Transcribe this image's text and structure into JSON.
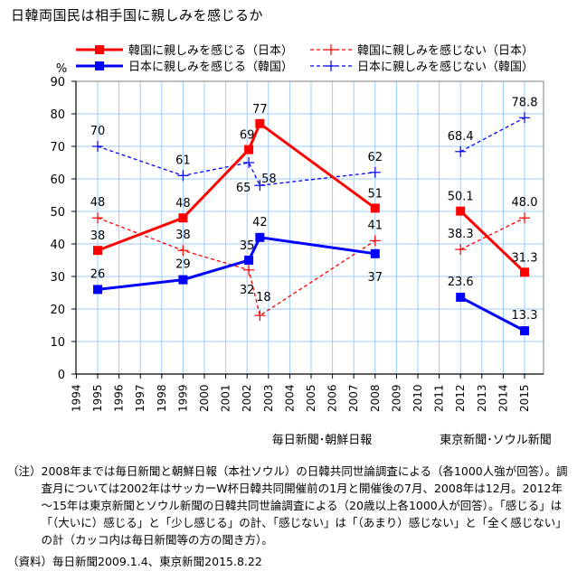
{
  "title": "日韓両国民は相手国に親しみを感じるか",
  "chart_data": {
    "type": "line",
    "title": "日韓両国民は相手国に親しみを感じるか",
    "ylabel": "%",
    "xlabel": "",
    "ylim": [
      0,
      90
    ],
    "yticks": [
      0,
      10,
      20,
      30,
      40,
      50,
      60,
      70,
      80,
      90
    ],
    "xlim": [
      1994,
      2015.9
    ],
    "xticks": [
      "1994",
      "1995",
      "1996",
      "1997",
      "1998",
      "1999",
      "2000",
      "2001",
      "2002",
      "2003",
      "2004",
      "2005",
      "2006",
      "2007",
      "2008",
      "2009",
      "2010",
      "2011",
      "2012",
      "2013",
      "2014",
      "2015"
    ],
    "grid": true,
    "legend_position": "top",
    "source_groups": [
      {
        "label": "毎日新聞･朝鮮日報",
        "years": "1995-2008"
      },
      {
        "label": "東京新聞･ソウル新聞",
        "years": "2012-2015"
      }
    ],
    "series": [
      {
        "name": "韓国に親しみを感じる（日本）",
        "color": "#ff0000",
        "style": "solid",
        "marker": "square",
        "segments": [
          [
            {
              "x": 1995,
              "y": 38,
              "label": "38"
            },
            {
              "x": 1999,
              "y": 48,
              "label": "48"
            },
            {
              "x": 2002.08,
              "y": 69,
              "label": "69"
            },
            {
              "x": 2002.6,
              "y": 77,
              "label": "77"
            },
            {
              "x": 2008,
              "y": 51,
              "label": "51"
            }
          ],
          [
            {
              "x": 2012,
              "y": 50.1,
              "label": "50.1"
            },
            {
              "x": 2015,
              "y": 31.3,
              "label": "31.3"
            }
          ]
        ]
      },
      {
        "name": "韓国に親しみを感じない（日本）",
        "color": "#ff0000",
        "style": "dashed",
        "marker": "plus",
        "segments": [
          [
            {
              "x": 1995,
              "y": 48,
              "label": "48"
            },
            {
              "x": 1999,
              "y": 38,
              "label": "38"
            },
            {
              "x": 2002.08,
              "y": 32,
              "label": "32"
            },
            {
              "x": 2002.6,
              "y": 18,
              "label": "18"
            },
            {
              "x": 2008,
              "y": 41,
              "label": "41"
            }
          ],
          [
            {
              "x": 2012,
              "y": 38.3,
              "label": "38.3"
            },
            {
              "x": 2015,
              "y": 48.0,
              "label": "48.0"
            }
          ]
        ]
      },
      {
        "name": "日本に親しみを感じる（韓国）",
        "color": "#0000ff",
        "style": "solid",
        "marker": "square",
        "segments": [
          [
            {
              "x": 1995,
              "y": 26,
              "label": "26"
            },
            {
              "x": 1999,
              "y": 29,
              "label": "29"
            },
            {
              "x": 2002.08,
              "y": 35,
              "label": "35"
            },
            {
              "x": 2002.6,
              "y": 42,
              "label": "42"
            },
            {
              "x": 2008,
              "y": 37,
              "label": "37"
            }
          ],
          [
            {
              "x": 2012,
              "y": 23.6,
              "label": "23.6"
            },
            {
              "x": 2015,
              "y": 13.3,
              "label": "13.3"
            }
          ]
        ]
      },
      {
        "name": "日本に親しみを感じない（韓国）",
        "color": "#0000ff",
        "style": "dashed",
        "marker": "plus",
        "segments": [
          [
            {
              "x": 1995,
              "y": 70,
              "label": "70"
            },
            {
              "x": 1999,
              "y": 61,
              "label": "61"
            },
            {
              "x": 2002.08,
              "y": 65,
              "label": "65"
            },
            {
              "x": 2002.6,
              "y": 58,
              "label": "58"
            },
            {
              "x": 2008,
              "y": 62,
              "label": "62"
            }
          ],
          [
            {
              "x": 2012,
              "y": 68.4,
              "label": "68.4"
            },
            {
              "x": 2015,
              "y": 78.8,
              "label": "78.8"
            }
          ]
        ]
      }
    ]
  },
  "notes": {
    "note_head": "（注）",
    "note_text": "2008年までは毎日新聞と朝鮮日報（本社ソウル）の日韓共同世論調査による（各1000人強が回答）。調査月については2002年はサッカーW杯日韓共同開催前の1月と開催後の7月、2008年は12月。2012年～15年は東京新聞とソウル新聞の日韓共同世論調査による（20歳以上各1000人が回答）。「感じる」は「（大いに）感じる」と「少し感じる」の計、「感じない」は「（あまり）感じない」と「全く感じない」の計（カッコ内は毎日新聞等の方の聞き方）。",
    "source_head": "（資料）",
    "source_text": "毎日新聞2009.1.4、東京新聞2015.8.22"
  }
}
